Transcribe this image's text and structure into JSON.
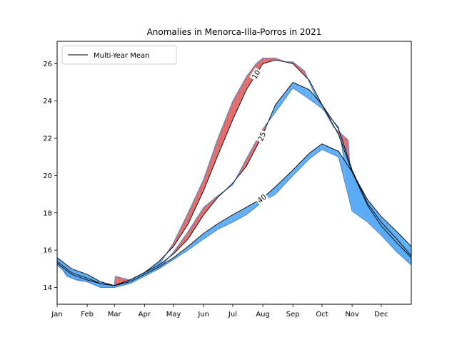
{
  "chart_data": {
    "type": "line",
    "title": "Anomalies in Menorca-Illa-Porros in 2021",
    "xlabel": "",
    "ylabel": "",
    "xlim": [
      0,
      365
    ],
    "ylim": [
      13.1,
      27.2
    ],
    "x_ticks": [
      {
        "label": "Jan",
        "day": 0
      },
      {
        "label": "Feb",
        "day": 31
      },
      {
        "label": "Mar",
        "day": 59
      },
      {
        "label": "Apr",
        "day": 90
      },
      {
        "label": "May",
        "day": 120
      },
      {
        "label": "Jun",
        "day": 151
      },
      {
        "label": "Jul",
        "day": 181
      },
      {
        "label": "Aug",
        "day": 212
      },
      {
        "label": "Sep",
        "day": 243
      },
      {
        "label": "Oct",
        "day": 273
      },
      {
        "label": "Nov",
        "day": 304
      },
      {
        "label": "Dec",
        "day": 334
      }
    ],
    "y_ticks": [
      14,
      16,
      18,
      20,
      22,
      24,
      26
    ],
    "legend": {
      "placement": "top-left",
      "entries": [
        "Multi-Year Mean"
      ]
    },
    "grid": false,
    "colors": {
      "above": "#e06666",
      "below": "#5aabf5",
      "below_line": "#4f86c6",
      "mean": "#000000"
    },
    "series": [
      {
        "depth_label": "10",
        "mean": [
          [
            0,
            15.6
          ],
          [
            15,
            15.0
          ],
          [
            31,
            14.7
          ],
          [
            45,
            14.3
          ],
          [
            59,
            14.1
          ],
          [
            75,
            14.4
          ],
          [
            90,
            14.8
          ],
          [
            105,
            15.4
          ],
          [
            120,
            16.2
          ],
          [
            135,
            17.4
          ],
          [
            151,
            19.2
          ],
          [
            165,
            21.0
          ],
          [
            181,
            23.0
          ],
          [
            195,
            24.6
          ],
          [
            212,
            26.0
          ],
          [
            225,
            26.2
          ],
          [
            235,
            26.1
          ],
          [
            243,
            26.0
          ],
          [
            260,
            25.1
          ],
          [
            273,
            23.8
          ],
          [
            290,
            22.2
          ],
          [
            304,
            20.2
          ],
          [
            320,
            18.7
          ],
          [
            334,
            17.8
          ],
          [
            350,
            17.0
          ],
          [
            365,
            16.2
          ]
        ],
        "observed": [
          [
            0,
            15.4
          ],
          [
            10,
            14.6
          ],
          [
            20,
            14.4
          ],
          [
            31,
            14.3
          ],
          [
            45,
            14.0
          ],
          [
            59,
            14.1
          ],
          [
            60,
            14.6
          ],
          [
            75,
            14.4
          ],
          [
            90,
            14.8
          ],
          [
            105,
            15.2
          ],
          [
            120,
            16.4
          ],
          [
            135,
            18.0
          ],
          [
            151,
            19.8
          ],
          [
            165,
            21.9
          ],
          [
            181,
            24.0
          ],
          [
            195,
            25.3
          ],
          [
            205,
            26.0
          ],
          [
            212,
            26.3
          ],
          [
            225,
            26.3
          ],
          [
            235,
            26.1
          ],
          [
            243,
            26.1
          ],
          [
            255,
            25.6
          ],
          [
            265,
            24.4
          ],
          [
            273,
            23.7
          ],
          [
            285,
            22.6
          ],
          [
            300,
            21.9
          ],
          [
            304,
            18.6
          ],
          [
            320,
            17.9
          ],
          [
            334,
            17.4
          ],
          [
            350,
            16.6
          ],
          [
            365,
            15.5
          ]
        ]
      },
      {
        "depth_label": "25",
        "mean": [
          [
            0,
            15.4
          ],
          [
            15,
            14.8
          ],
          [
            31,
            14.5
          ],
          [
            45,
            14.2
          ],
          [
            59,
            14.1
          ],
          [
            75,
            14.4
          ],
          [
            90,
            14.8
          ],
          [
            105,
            15.2
          ],
          [
            120,
            15.8
          ],
          [
            135,
            16.6
          ],
          [
            151,
            17.9
          ],
          [
            165,
            18.8
          ],
          [
            181,
            19.6
          ],
          [
            195,
            20.5
          ],
          [
            212,
            22.2
          ],
          [
            225,
            23.8
          ],
          [
            243,
            25.0
          ],
          [
            260,
            24.6
          ],
          [
            273,
            23.8
          ],
          [
            290,
            22.5
          ],
          [
            304,
            20.3
          ],
          [
            320,
            18.5
          ],
          [
            334,
            17.5
          ],
          [
            350,
            16.6
          ],
          [
            365,
            15.7
          ]
        ],
        "observed": [
          [
            0,
            15.3
          ],
          [
            15,
            14.6
          ],
          [
            31,
            14.4
          ],
          [
            45,
            14.1
          ],
          [
            59,
            14.0
          ],
          [
            75,
            14.3
          ],
          [
            90,
            14.7
          ],
          [
            105,
            15.0
          ],
          [
            120,
            15.9
          ],
          [
            135,
            17.0
          ],
          [
            151,
            18.3
          ],
          [
            165,
            18.9
          ],
          [
            181,
            19.5
          ],
          [
            195,
            20.9
          ],
          [
            212,
            22.5
          ],
          [
            225,
            23.4
          ],
          [
            243,
            24.7
          ],
          [
            260,
            24.1
          ],
          [
            273,
            23.6
          ],
          [
            290,
            22.6
          ],
          [
            304,
            18.3
          ],
          [
            320,
            17.7
          ],
          [
            334,
            16.9
          ],
          [
            350,
            16.0
          ],
          [
            365,
            15.3
          ]
        ]
      },
      {
        "depth_label": "40",
        "mean": [
          [
            0,
            15.3
          ],
          [
            15,
            14.7
          ],
          [
            31,
            14.4
          ],
          [
            45,
            14.2
          ],
          [
            59,
            14.1
          ],
          [
            75,
            14.3
          ],
          [
            90,
            14.7
          ],
          [
            105,
            15.1
          ],
          [
            120,
            15.6
          ],
          [
            135,
            16.2
          ],
          [
            151,
            16.9
          ],
          [
            165,
            17.4
          ],
          [
            181,
            17.9
          ],
          [
            195,
            18.3
          ],
          [
            212,
            18.8
          ],
          [
            225,
            19.4
          ],
          [
            243,
            20.3
          ],
          [
            260,
            21.2
          ],
          [
            273,
            21.7
          ],
          [
            290,
            21.3
          ],
          [
            304,
            20.2
          ],
          [
            320,
            18.4
          ],
          [
            334,
            17.3
          ],
          [
            350,
            16.4
          ],
          [
            365,
            15.6
          ]
        ],
        "observed": [
          [
            0,
            15.2
          ],
          [
            15,
            14.5
          ],
          [
            31,
            14.3
          ],
          [
            45,
            14.0
          ],
          [
            59,
            14.0
          ],
          [
            75,
            14.2
          ],
          [
            90,
            14.6
          ],
          [
            105,
            15.0
          ],
          [
            120,
            15.5
          ],
          [
            135,
            16.0
          ],
          [
            151,
            16.6
          ],
          [
            165,
            17.1
          ],
          [
            181,
            17.5
          ],
          [
            195,
            17.9
          ],
          [
            212,
            18.6
          ],
          [
            225,
            19.0
          ],
          [
            243,
            20.0
          ],
          [
            260,
            20.9
          ],
          [
            273,
            21.4
          ],
          [
            290,
            21.0
          ],
          [
            304,
            18.1
          ],
          [
            320,
            17.5
          ],
          [
            334,
            16.8
          ],
          [
            350,
            15.9
          ],
          [
            365,
            15.2
          ]
        ]
      }
    ]
  }
}
